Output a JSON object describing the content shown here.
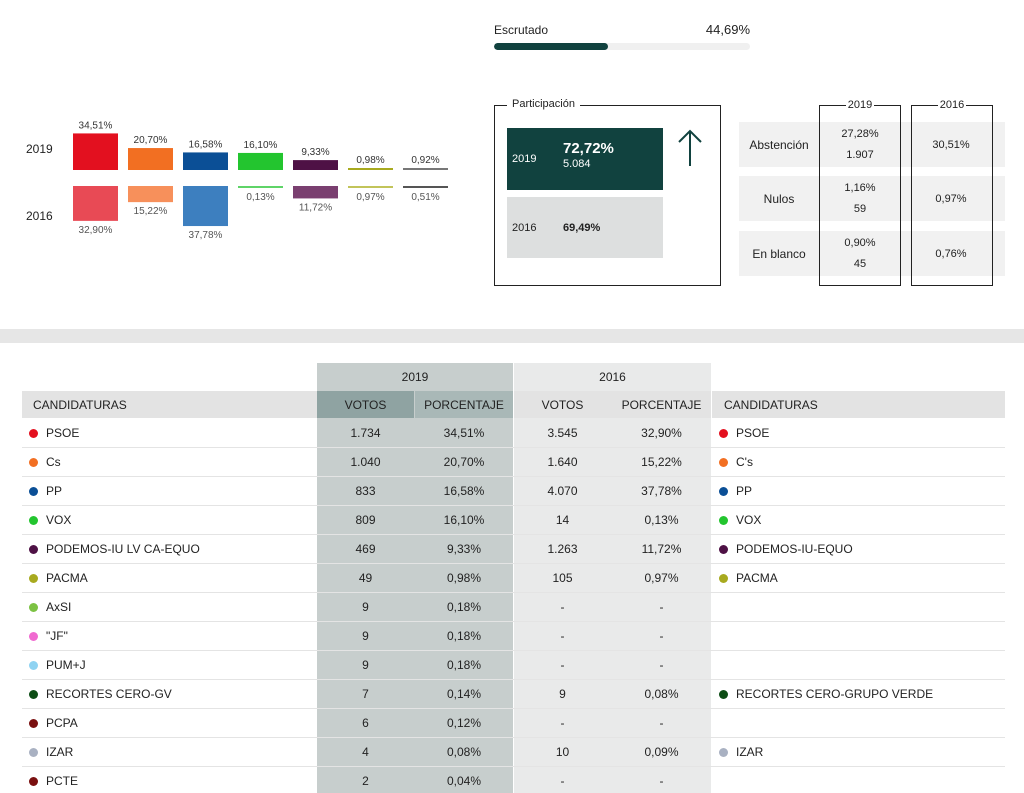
{
  "escrutado": {
    "label": "Escrutado",
    "value": "44,69%",
    "fraction": 0.4469
  },
  "bars": {
    "years": [
      "2019",
      "2016"
    ],
    "parties": [
      {
        "color2019": "#e3101f",
        "color2016": "#e84a55",
        "v2019": 34.51,
        "v2016": 32.9,
        "l2019": "34,51%",
        "l2016": "32,90%"
      },
      {
        "color2019": "#f26f22",
        "color2016": "#f7905b",
        "v2019": 20.7,
        "v2016": 15.22,
        "l2019": "20,70%",
        "l2016": "15,22%"
      },
      {
        "color2019": "#0b4f96",
        "color2016": "#3d7fbf",
        "v2019": 16.58,
        "v2016": 37.78,
        "l2019": "16,58%",
        "l2016": "37,78%"
      },
      {
        "color2019": "#23c52f",
        "color2016": "#5fd468",
        "v2019": 16.1,
        "v2016": 0.13,
        "l2019": "16,10%",
        "l2016": "0,13%"
      },
      {
        "color2019": "#4e1145",
        "color2016": "#7a3f70",
        "v2019": 9.33,
        "v2016": 11.72,
        "l2019": "9,33%",
        "l2016": "11,72%"
      },
      {
        "color2019": "#a8aa1f",
        "color2016": "#c2c45a",
        "v2019": 0.98,
        "v2016": 0.97,
        "l2019": "0,98%",
        "l2016": "0,97%"
      },
      {
        "color2019": "#777777",
        "color2016": "#555555",
        "v2019": 0.92,
        "v2016": 0.51,
        "l2019": "0,92%",
        "l2016": "0,51%"
      }
    ]
  },
  "participacion": {
    "title": "Participación",
    "y2019": {
      "year": "2019",
      "pct": "72,72%",
      "votes": "5.084"
    },
    "y2016": {
      "year": "2016",
      "pct": "69,49%"
    }
  },
  "abstencion": {
    "year2019": "2019",
    "year2016": "2016",
    "rows": [
      {
        "label": "Abstención",
        "pct2019": "27,28%",
        "num2019": "1.907",
        "pct2016": "30,51%"
      },
      {
        "label": "Nulos",
        "pct2019": "1,16%",
        "num2019": "59",
        "pct2016": "0,97%"
      },
      {
        "label": "En blanco",
        "pct2019": "0,90%",
        "num2019": "45",
        "pct2016": "0,76%"
      }
    ]
  },
  "results": {
    "year2019": "2019",
    "year2016": "2016",
    "headers": {
      "cand": "CANDIDATURAS",
      "votos": "VOTOS",
      "porcentaje": "PORCENTAJE",
      "votos16": "VOTOS",
      "porcentaje16": "PORCENTAJE",
      "cand16": "CANDIDATURAS"
    },
    "rows": [
      {
        "name": "PSOE",
        "color": "#e3101f",
        "v19": "1.734",
        "p19": "34,51%",
        "v16": "3.545",
        "p16": "32,90%",
        "name16": "PSOE",
        "color16": "#e3101f"
      },
      {
        "name": "Cs",
        "color": "#f26f22",
        "v19": "1.040",
        "p19": "20,70%",
        "v16": "1.640",
        "p16": "15,22%",
        "name16": "C's",
        "color16": "#f26f22"
      },
      {
        "name": "PP",
        "color": "#0b4f96",
        "v19": "833",
        "p19": "16,58%",
        "v16": "4.070",
        "p16": "37,78%",
        "name16": "PP",
        "color16": "#0b4f96"
      },
      {
        "name": "VOX",
        "color": "#23c52f",
        "v19": "809",
        "p19": "16,10%",
        "v16": "14",
        "p16": "0,13%",
        "name16": "VOX",
        "color16": "#23c52f"
      },
      {
        "name": "PODEMOS-IU LV CA-EQUO",
        "color": "#4e1145",
        "v19": "469",
        "p19": "9,33%",
        "v16": "1.263",
        "p16": "11,72%",
        "name16": "PODEMOS-IU-EQUO",
        "color16": "#4e1145"
      },
      {
        "name": "PACMA",
        "color": "#a8aa1f",
        "v19": "49",
        "p19": "0,98%",
        "v16": "105",
        "p16": "0,97%",
        "name16": "PACMA",
        "color16": "#a8aa1f"
      },
      {
        "name": "AxSI",
        "color": "#7cc243",
        "v19": "9",
        "p19": "0,18%",
        "v16": "-",
        "p16": "-",
        "name16": "",
        "color16": ""
      },
      {
        "name": "\"JF\"",
        "color": "#f06ad0",
        "v19": "9",
        "p19": "0,18%",
        "v16": "-",
        "p16": "-",
        "name16": "",
        "color16": ""
      },
      {
        "name": "PUM+J",
        "color": "#8fd3f2",
        "v19": "9",
        "p19": "0,18%",
        "v16": "-",
        "p16": "-",
        "name16": "",
        "color16": ""
      },
      {
        "name": "RECORTES CERO-GV",
        "color": "#0d4d16",
        "v19": "7",
        "p19": "0,14%",
        "v16": "9",
        "p16": "0,08%",
        "name16": "RECORTES CERO-GRUPO VERDE",
        "color16": "#0d4d16"
      },
      {
        "name": "PCPA",
        "color": "#7a1010",
        "v19": "6",
        "p19": "0,12%",
        "v16": "-",
        "p16": "-",
        "name16": "",
        "color16": ""
      },
      {
        "name": "IZAR",
        "color": "#a9b1c2",
        "v19": "4",
        "p19": "0,08%",
        "v16": "10",
        "p16": "0,09%",
        "name16": "IZAR",
        "color16": "#a9b1c2"
      },
      {
        "name": "PCTE",
        "color": "#7a1010",
        "v19": "2",
        "p19": "0,04%",
        "v16": "-",
        "p16": "-",
        "name16": "",
        "color16": ""
      }
    ]
  }
}
